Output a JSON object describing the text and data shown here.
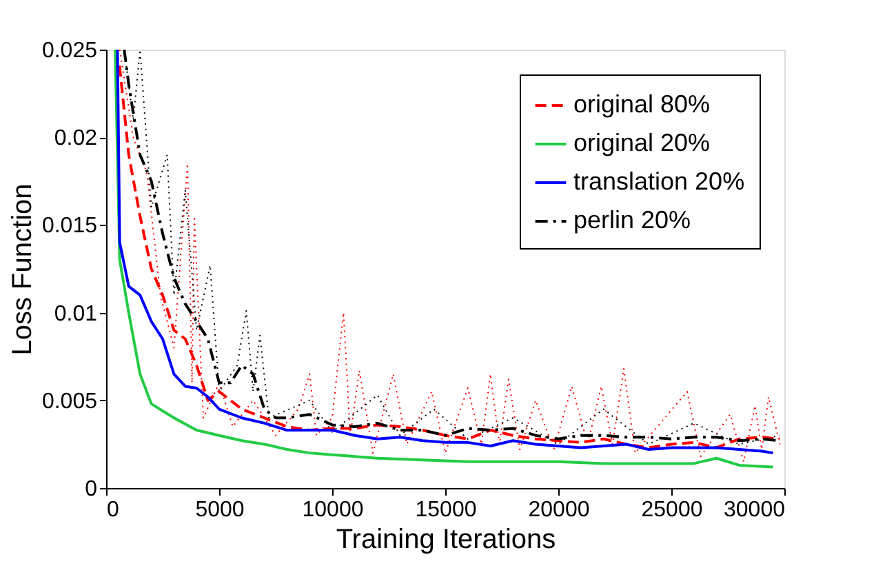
{
  "chart_data": {
    "type": "line",
    "xlabel": "Training Iterations",
    "ylabel": "Loss Function",
    "xlim": [
      0,
      30000
    ],
    "ylim": [
      0,
      0.025
    ],
    "xticks": [
      0,
      5000,
      10000,
      15000,
      20000,
      25000,
      30000
    ],
    "yticks": [
      0,
      0.005,
      0.01,
      0.015,
      0.02,
      0.025
    ],
    "grid": false,
    "legend": "top right",
    "series": [
      {
        "color": "#ff0000",
        "line_style": "dotted",
        "x": [
          600,
          1200,
          1800,
          2400,
          3000,
          3600,
          3800,
          3900,
          4300,
          5000,
          5600,
          6500,
          7500,
          8500,
          9000,
          9300,
          10000,
          10500,
          10800,
          11200,
          11800,
          12700,
          13300,
          14400,
          15000,
          16000,
          16600,
          17000,
          17400,
          17800,
          18300,
          19000,
          19800,
          20600,
          21300,
          21900,
          22400,
          22900,
          23400,
          25700,
          26300,
          27600,
          28200,
          28700,
          29000,
          29300,
          29800
        ],
        "values": [
          0.025,
          0.02,
          0.018,
          0.011,
          0.008,
          0.0185,
          0.006,
          0.0155,
          0.004,
          0.006,
          0.0035,
          0.005,
          0.003,
          0.0045,
          0.0065,
          0.003,
          0.004,
          0.01,
          0.003,
          0.0067,
          0.002,
          0.0065,
          0.0025,
          0.0055,
          0.002,
          0.0057,
          0.0025,
          0.0065,
          0.0025,
          0.0062,
          0.0022,
          0.005,
          0.0022,
          0.0058,
          0.0025,
          0.0058,
          0.0025,
          0.0068,
          0.002,
          0.0055,
          0.0018,
          0.0042,
          0.0015,
          0.0047,
          0.0022,
          0.0052,
          0.0025
        ]
      },
      {
        "color": "#000000",
        "line_style": "dotted",
        "x": [
          800,
          1200,
          1500,
          2000,
          2700,
          3000,
          3500,
          4000,
          4600,
          5000,
          5800,
          6200,
          6500,
          6800,
          7200,
          9000,
          10000,
          12000,
          13000,
          14500,
          16000,
          18000,
          20000,
          22000,
          24000,
          26000,
          28000,
          29800
        ],
        "values": [
          0.025,
          0.021,
          0.025,
          0.016,
          0.019,
          0.011,
          0.017,
          0.009,
          0.0127,
          0.0055,
          0.007,
          0.0101,
          0.0055,
          0.0087,
          0.004,
          0.005,
          0.0032,
          0.0053,
          0.003,
          0.0045,
          0.0028,
          0.004,
          0.0025,
          0.0045,
          0.0025,
          0.0037,
          0.0025,
          0.003
        ]
      },
      {
        "name": "original 80%",
        "color": "#ff0000",
        "line_style": "dashed",
        "x": [
          400,
          600,
          1000,
          1500,
          2000,
          2500,
          3000,
          3500,
          4000,
          4500,
          5000,
          5500,
          6000,
          7000,
          8000,
          9000,
          10000,
          11000,
          12000,
          13000,
          14000,
          15000,
          16000,
          17000,
          18000,
          19000,
          20000,
          21000,
          22000,
          23000,
          24000,
          25000,
          26000,
          27000,
          28000,
          29000,
          29800
        ],
        "values": [
          0.025,
          0.024,
          0.019,
          0.0155,
          0.0125,
          0.011,
          0.009,
          0.0085,
          0.007,
          0.005,
          0.0055,
          0.005,
          0.0045,
          0.004,
          0.0035,
          0.0033,
          0.0034,
          0.0034,
          0.0036,
          0.0035,
          0.0033,
          0.003,
          0.0028,
          0.0033,
          0.003,
          0.0028,
          0.0027,
          0.0026,
          0.0028,
          0.0025,
          0.0023,
          0.0025,
          0.0026,
          0.0023,
          0.0028,
          0.0029,
          0.0028
        ]
      },
      {
        "name": "original 20%",
        "color": "#22cc44",
        "line_style": "solid",
        "x": [
          400,
          600,
          1000,
          1500,
          2000,
          3000,
          4000,
          5000,
          6000,
          7000,
          8000,
          9000,
          10000,
          12000,
          14000,
          16000,
          18000,
          20000,
          22000,
          24000,
          26000,
          27000,
          28000,
          29500
        ],
        "values": [
          0.025,
          0.013,
          0.01,
          0.0065,
          0.0048,
          0.004,
          0.0033,
          0.003,
          0.0027,
          0.0025,
          0.0022,
          0.002,
          0.0019,
          0.0017,
          0.0016,
          0.0015,
          0.0015,
          0.0015,
          0.0014,
          0.0014,
          0.0014,
          0.0017,
          0.0013,
          0.0012
        ]
      },
      {
        "name": "translation 20%",
        "color": "#0000ff",
        "line_style": "solid",
        "x": [
          500,
          600,
          1000,
          1500,
          2000,
          2500,
          3000,
          3500,
          4000,
          4500,
          5000,
          6000,
          7000,
          8000,
          9000,
          10000,
          11000,
          12000,
          13000,
          14000,
          15000,
          16000,
          17000,
          18000,
          19000,
          20000,
          21000,
          22000,
          23000,
          24000,
          25000,
          26000,
          27000,
          28000,
          29000,
          29500
        ],
        "values": [
          0.025,
          0.014,
          0.0115,
          0.011,
          0.0095,
          0.0085,
          0.0065,
          0.0058,
          0.0057,
          0.0052,
          0.0045,
          0.004,
          0.0037,
          0.0033,
          0.0033,
          0.0033,
          0.003,
          0.0028,
          0.0029,
          0.0027,
          0.0026,
          0.0026,
          0.0024,
          0.0027,
          0.0025,
          0.0024,
          0.0023,
          0.0024,
          0.0025,
          0.0022,
          0.0023,
          0.0023,
          0.0023,
          0.0022,
          0.0021,
          0.002
        ]
      },
      {
        "name": "perlin 20%",
        "color": "#000000",
        "line_style": "dashdot",
        "x": [
          800,
          1000,
          1500,
          2000,
          2500,
          3000,
          3500,
          4000,
          4500,
          5000,
          5500,
          6000,
          6500,
          7000,
          7500,
          8000,
          9000,
          10000,
          11000,
          12000,
          13000,
          14000,
          15000,
          16000,
          17000,
          18000,
          19000,
          20000,
          21000,
          22000,
          23000,
          24000,
          25000,
          26000,
          27000,
          28000,
          29000,
          29800
        ],
        "values": [
          0.025,
          0.023,
          0.019,
          0.0175,
          0.0145,
          0.012,
          0.0105,
          0.0095,
          0.0085,
          0.006,
          0.006,
          0.007,
          0.0065,
          0.0045,
          0.004,
          0.004,
          0.0042,
          0.0036,
          0.0035,
          0.0037,
          0.0033,
          0.0033,
          0.003,
          0.0034,
          0.0033,
          0.0034,
          0.003,
          0.0028,
          0.003,
          0.003,
          0.0029,
          0.0029,
          0.0028,
          0.0029,
          0.0029,
          0.0027,
          0.0028,
          0.0027
        ]
      }
    ]
  }
}
